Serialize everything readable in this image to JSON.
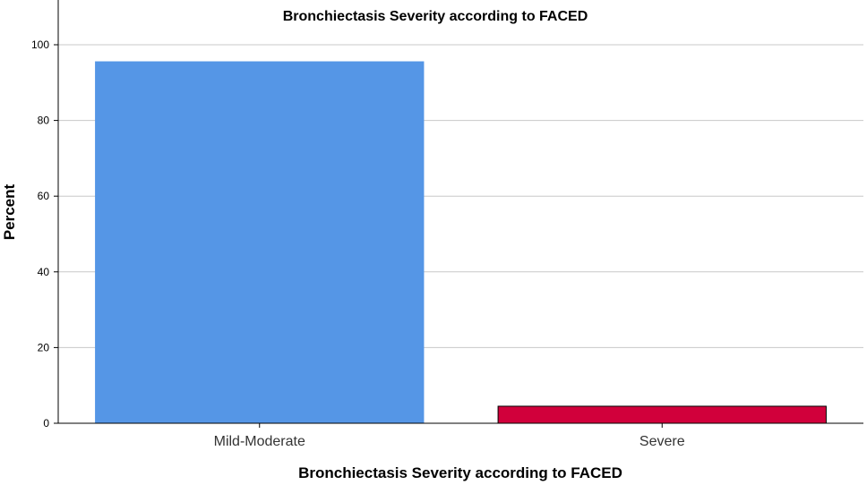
{
  "chart_data": {
    "type": "bar",
    "title": "Bronchiectasis Severity according to FACED",
    "xlabel": "Bronchiectasis Severity according to FACED",
    "ylabel": "Percent",
    "categories": [
      "Mild-Moderate",
      "Severe"
    ],
    "values": [
      95.5,
      4.5
    ],
    "ylim": [
      0,
      100
    ],
    "yticks": [
      0,
      20,
      40,
      60,
      80,
      100
    ],
    "grid": true,
    "bar_colors": [
      "#5596e6",
      "#d1003b"
    ],
    "bar_edge_colors": [
      "#5596e6",
      "#000000"
    ]
  }
}
